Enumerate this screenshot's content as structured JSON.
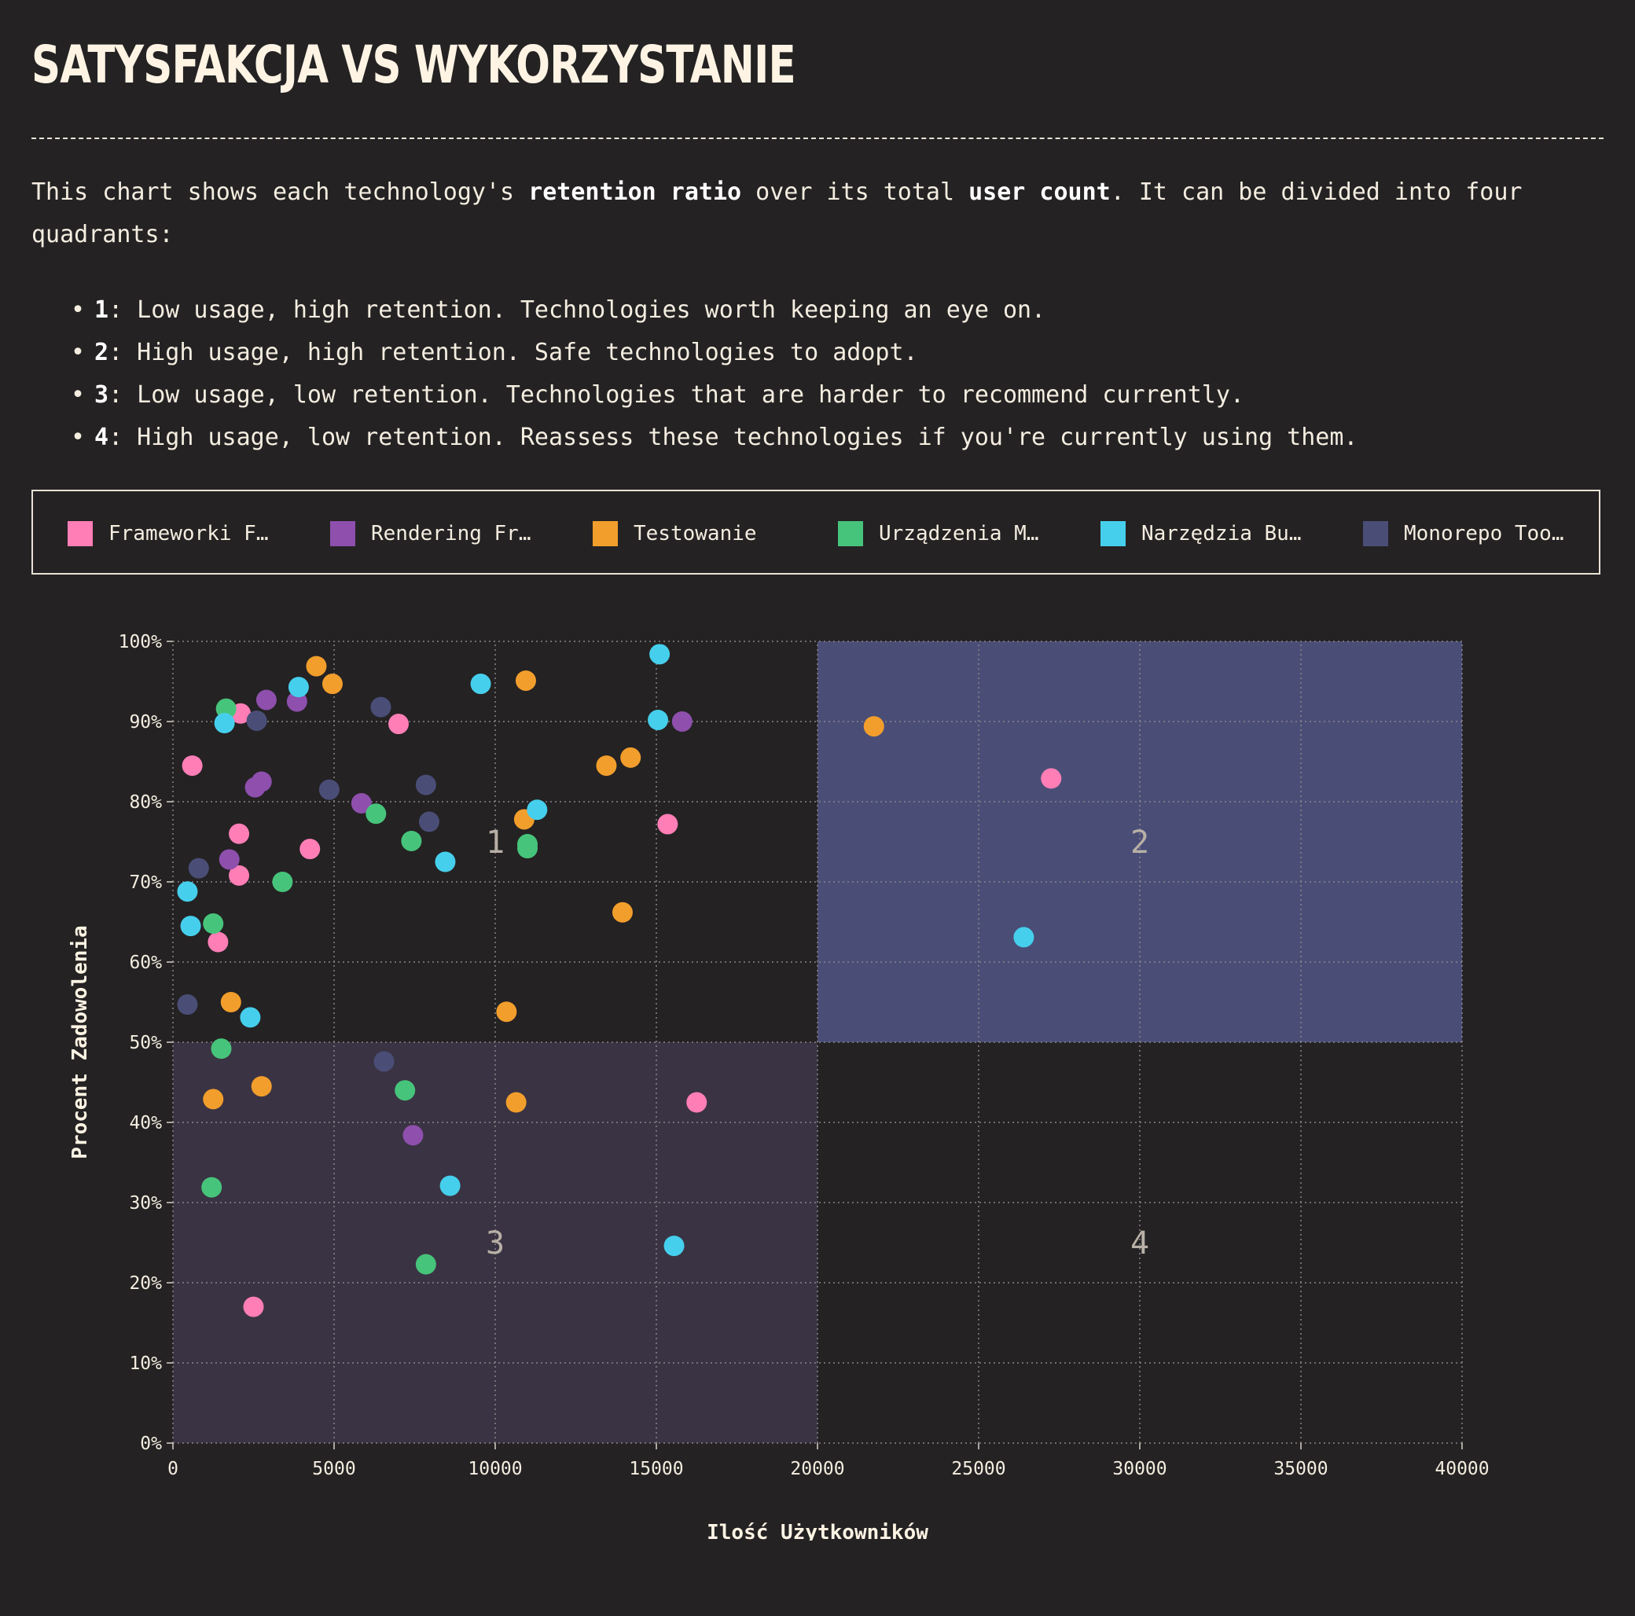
{
  "title": "SATYSFAKCJA VS WYKORZYSTANIE",
  "intro": {
    "p1": "This chart shows each technology's ",
    "b1": "retention ratio",
    "p2": " over its total ",
    "b2": "user count",
    "p3": ". It can be divided into four quadrants:"
  },
  "quadrants": [
    {
      "num": "1",
      "text": ": Low usage, high retention. Technologies worth keeping an eye on."
    },
    {
      "num": "2",
      "text": ": High usage, high retention. Safe technologies to adopt."
    },
    {
      "num": "3",
      "text": ": Low usage, low retention. Technologies that are harder to recommend currently."
    },
    {
      "num": "4",
      "text": ": High usage, low retention. Reassess these technologies if you're currently using them."
    }
  ],
  "legend": [
    {
      "label": "Frameworki F…",
      "color": "#ff7eb6"
    },
    {
      "label": "Rendering Fr…",
      "color": "#8e4fad"
    },
    {
      "label": "Testowanie",
      "color": "#f29e2c"
    },
    {
      "label": "Urządzenia M…",
      "color": "#47c47b"
    },
    {
      "label": "Narzędzia Bu…",
      "color": "#46cfec"
    },
    {
      "label": "Monorepo Too…",
      "color": "#4a4e77"
    }
  ],
  "chart_data": {
    "type": "scatter",
    "title": "",
    "xlabel": "Ilość Użytkowników",
    "ylabel": "Procent Zadowolenia",
    "xlim": [
      0,
      40000
    ],
    "ylim": [
      0,
      100
    ],
    "x_ticks": [
      "0",
      "5000",
      "10000",
      "15000",
      "20000",
      "25000",
      "30000",
      "35000",
      "40000"
    ],
    "y_ticks": [
      "0%",
      "10%",
      "20%",
      "30%",
      "40%",
      "50%",
      "60%",
      "70%",
      "80%",
      "90%",
      "100%"
    ],
    "grid": true,
    "quadrant_labels": [
      "1",
      "2",
      "3",
      "4"
    ],
    "quadrant_split": {
      "x": 20000,
      "y": 50
    },
    "highlight_colors": {
      "quadrant2": "#4a4e77",
      "quadrant3": "#3a3343"
    },
    "series": [
      {
        "name": "Frameworki F…",
        "color": "#ff7eb6",
        "points": [
          [
            2100,
            91
          ],
          [
            600,
            84.5
          ],
          [
            7000,
            89.7
          ],
          [
            2050,
            76
          ],
          [
            2050,
            70.8
          ],
          [
            4250,
            74.1
          ],
          [
            1400,
            62.5
          ],
          [
            15350,
            77.2
          ],
          [
            27250,
            82.9
          ],
          [
            16250,
            42.5
          ],
          [
            2500,
            17
          ]
        ]
      },
      {
        "name": "Rendering Fr…",
        "color": "#8e4fad",
        "points": [
          [
            2900,
            92.7
          ],
          [
            3850,
            92.5
          ],
          [
            2550,
            81.8
          ],
          [
            2750,
            82.5
          ],
          [
            1750,
            72.8
          ],
          [
            5850,
            79.8
          ],
          [
            15800,
            90
          ],
          [
            7450,
            38.4
          ]
        ]
      },
      {
        "name": "Testowanie",
        "color": "#f29e2c",
        "points": [
          [
            4450,
            96.9
          ],
          [
            4950,
            94.7
          ],
          [
            10950,
            95.1
          ],
          [
            21750,
            89.4
          ],
          [
            13450,
            84.5
          ],
          [
            14200,
            85.5
          ],
          [
            10900,
            77.8
          ],
          [
            13950,
            66.2
          ],
          [
            1800,
            55
          ],
          [
            10350,
            53.8
          ],
          [
            1250,
            42.9
          ],
          [
            2750,
            44.5
          ],
          [
            10650,
            42.5
          ]
        ]
      },
      {
        "name": "Urządzenia M…",
        "color": "#47c47b",
        "points": [
          [
            1650,
            91.6
          ],
          [
            6300,
            78.5
          ],
          [
            7400,
            75.1
          ],
          [
            11000,
            74.7
          ],
          [
            11000,
            74.2
          ],
          [
            3400,
            70
          ],
          [
            1250,
            64.8
          ],
          [
            1500,
            49.2
          ],
          [
            7200,
            44
          ],
          [
            1200,
            31.9
          ],
          [
            7850,
            22.3
          ]
        ]
      },
      {
        "name": "Narzędzia Bu…",
        "color": "#46cfec",
        "points": [
          [
            15100,
            98.4
          ],
          [
            3900,
            94.3
          ],
          [
            9550,
            94.7
          ],
          [
            1600,
            89.8
          ],
          [
            15050,
            90.2
          ],
          [
            11300,
            79
          ],
          [
            8450,
            72.5
          ],
          [
            450,
            68.8
          ],
          [
            550,
            64.5
          ],
          [
            2400,
            53.1
          ],
          [
            26400,
            63.1
          ],
          [
            8600,
            32.1
          ],
          [
            15550,
            24.6
          ]
        ]
      },
      {
        "name": "Monorepo Too…",
        "color": "#4a4e77",
        "points": [
          [
            6450,
            91.8
          ],
          [
            2600,
            90.1
          ],
          [
            4850,
            81.5
          ],
          [
            7850,
            82.1
          ],
          [
            7950,
            77.5
          ],
          [
            800,
            71.7
          ],
          [
            450,
            54.7
          ],
          [
            6550,
            47.6
          ]
        ]
      }
    ]
  }
}
